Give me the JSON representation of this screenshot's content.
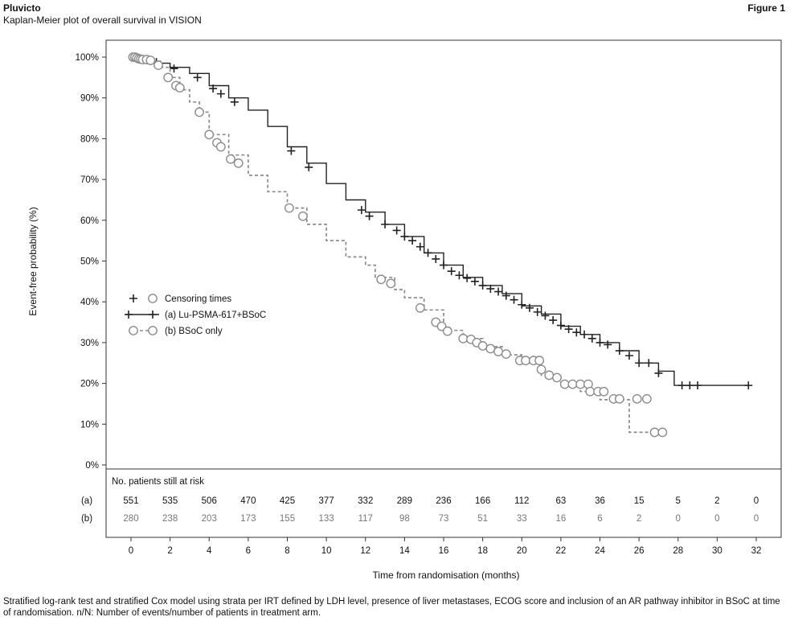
{
  "header": {
    "brand": "Pluvicto",
    "subtitle": "Kaplan-Meier plot of overall survival in VISION",
    "figure": "Figure 1"
  },
  "footnote": "Stratified log-rank test and stratified Cox model using strata per IRT defined by LDH level, presence of liver metastases, ECOG score and inclusion of an AR pathway inhibitor in BSoC at time of randomisation. n/N: Number of events/number of patients in treatment arm.",
  "chart_data": {
    "type": "line",
    "title": "",
    "xlabel": "Time from randomisation (months)",
    "ylabel": "Event-free probability (%)",
    "xlim": [
      0,
      32
    ],
    "ylim": [
      0,
      100
    ],
    "x_ticks": [
      0,
      2,
      4,
      6,
      8,
      10,
      12,
      14,
      16,
      18,
      20,
      22,
      24,
      26,
      28,
      30,
      32
    ],
    "y_ticks": [
      "0%",
      "10%",
      "20%",
      "30%",
      "40%",
      "50%",
      "60%",
      "70%",
      "80%",
      "90%",
      "100%"
    ],
    "y_tick_values": [
      0,
      10,
      20,
      30,
      40,
      50,
      60,
      70,
      80,
      90,
      100
    ],
    "legend": {
      "position": "middle-left",
      "entries": [
        "Censoring times",
        "(a) Lu-PSMA-617+BSoC",
        "(b) BSoC only"
      ]
    },
    "series": [
      {
        "name": "(a) Lu-PSMA-617+BSoC",
        "color": "#222222",
        "style": "solid",
        "censor_mark": "plus",
        "points": [
          [
            0,
            100
          ],
          [
            0.5,
            99.5
          ],
          [
            1,
            99
          ],
          [
            1.5,
            98.5
          ],
          [
            2,
            97.5
          ],
          [
            3,
            96
          ],
          [
            4,
            93
          ],
          [
            5,
            90
          ],
          [
            6,
            87
          ],
          [
            7,
            83
          ],
          [
            8,
            78
          ],
          [
            9,
            74
          ],
          [
            10,
            69
          ],
          [
            11,
            65
          ],
          [
            12,
            62
          ],
          [
            13,
            59
          ],
          [
            14,
            56
          ],
          [
            15,
            52
          ],
          [
            16,
            49
          ],
          [
            17,
            46
          ],
          [
            18,
            44
          ],
          [
            19,
            42
          ],
          [
            20,
            39
          ],
          [
            21,
            37
          ],
          [
            22,
            34
          ],
          [
            23,
            32
          ],
          [
            24,
            30
          ],
          [
            25,
            28
          ],
          [
            26,
            25
          ],
          [
            27,
            23
          ],
          [
            27.8,
            19.5
          ],
          [
            31.6,
            19.5
          ]
        ],
        "censored": [
          [
            0.3,
            99.8
          ],
          [
            0.6,
            99.5
          ],
          [
            1.3,
            98.8
          ],
          [
            2.2,
            97.2
          ],
          [
            3.4,
            95
          ],
          [
            4.2,
            92.3
          ],
          [
            4.6,
            91
          ],
          [
            5.3,
            89
          ],
          [
            8.2,
            77
          ],
          [
            9.1,
            73
          ],
          [
            11.8,
            62.5
          ],
          [
            12.2,
            61
          ],
          [
            13,
            59
          ],
          [
            13.6,
            57.5
          ],
          [
            14,
            56
          ],
          [
            14.4,
            55
          ],
          [
            14.8,
            53.5
          ],
          [
            15.2,
            52
          ],
          [
            15.6,
            50.5
          ],
          [
            16,
            49
          ],
          [
            16.4,
            47.5
          ],
          [
            16.8,
            46.5
          ],
          [
            17.2,
            45.8
          ],
          [
            17.6,
            45
          ],
          [
            18,
            44
          ],
          [
            18.4,
            43.2
          ],
          [
            18.8,
            42.5
          ],
          [
            19.2,
            41.5
          ],
          [
            19.6,
            40.5
          ],
          [
            20,
            39.3
          ],
          [
            20.4,
            38.5
          ],
          [
            20.8,
            37.5
          ],
          [
            21.2,
            36.6
          ],
          [
            21.6,
            35.5
          ],
          [
            22,
            34.2
          ],
          [
            22.4,
            33.3
          ],
          [
            22.8,
            32.5
          ],
          [
            23.2,
            32
          ],
          [
            23.6,
            31
          ],
          [
            24,
            30
          ],
          [
            24.4,
            29.5
          ],
          [
            25,
            28
          ],
          [
            25.5,
            26.8
          ],
          [
            26,
            25
          ],
          [
            26.5,
            25
          ],
          [
            27,
            22.5
          ],
          [
            28.2,
            19.5
          ],
          [
            28.6,
            19.5
          ],
          [
            29,
            19.5
          ],
          [
            31.6,
            19.5
          ]
        ]
      },
      {
        "name": "(b) BSoC only",
        "color": "#8c8c8c",
        "style": "dashed",
        "censor_mark": "circle",
        "points": [
          [
            0,
            100
          ],
          [
            1,
            99
          ],
          [
            1.5,
            97.5
          ],
          [
            2,
            95
          ],
          [
            2.5,
            92
          ],
          [
            3,
            89
          ],
          [
            3.5,
            86.5
          ],
          [
            4,
            81
          ],
          [
            5,
            76
          ],
          [
            6,
            71
          ],
          [
            7,
            67
          ],
          [
            8,
            63
          ],
          [
            9,
            59
          ],
          [
            10,
            55
          ],
          [
            11,
            51
          ],
          [
            12,
            49
          ],
          [
            12.5,
            46
          ],
          [
            13.5,
            43
          ],
          [
            14,
            41
          ],
          [
            15,
            38
          ],
          [
            16,
            33
          ],
          [
            17,
            31
          ],
          [
            18,
            29
          ],
          [
            19,
            27
          ],
          [
            20,
            25
          ],
          [
            21,
            22
          ],
          [
            22,
            20
          ],
          [
            23,
            18
          ],
          [
            24,
            16
          ],
          [
            25.2,
            16
          ],
          [
            25.5,
            8
          ],
          [
            27.2,
            8
          ]
        ],
        "censored": [
          [
            0.1,
            100
          ],
          [
            0.2,
            100
          ],
          [
            0.3,
            99.8
          ],
          [
            0.4,
            99.6
          ],
          [
            0.5,
            99.5
          ],
          [
            0.6,
            99.4
          ],
          [
            0.8,
            99.4
          ],
          [
            1.0,
            99.2
          ],
          [
            1.4,
            98
          ],
          [
            1.9,
            95
          ],
          [
            2.3,
            93
          ],
          [
            2.5,
            92.5
          ],
          [
            3.5,
            86.5
          ],
          [
            4,
            81
          ],
          [
            4.4,
            79
          ],
          [
            4.6,
            78
          ],
          [
            5.1,
            75
          ],
          [
            5.5,
            74
          ],
          [
            8.1,
            63
          ],
          [
            8.8,
            61
          ],
          [
            12.8,
            45.5
          ],
          [
            13.3,
            44.5
          ],
          [
            14.8,
            38.5
          ],
          [
            15.6,
            35
          ],
          [
            15.9,
            34
          ],
          [
            16.2,
            32.8
          ],
          [
            17,
            31
          ],
          [
            17.4,
            30.8
          ],
          [
            17.7,
            30
          ],
          [
            18,
            29.2
          ],
          [
            18.4,
            28.5
          ],
          [
            18.8,
            27.8
          ],
          [
            19.2,
            27.2
          ],
          [
            19.9,
            25.6
          ],
          [
            20.2,
            25.6
          ],
          [
            20.6,
            25.6
          ],
          [
            20.9,
            25.6
          ],
          [
            21,
            23.4
          ],
          [
            21.4,
            22
          ],
          [
            21.8,
            21.4
          ],
          [
            22.2,
            19.8
          ],
          [
            22.6,
            19.8
          ],
          [
            23,
            19.8
          ],
          [
            23.4,
            19.8
          ],
          [
            23.5,
            18
          ],
          [
            23.9,
            18
          ],
          [
            24.2,
            18
          ],
          [
            24.7,
            16.2
          ],
          [
            25,
            16.2
          ],
          [
            25.9,
            16.2
          ],
          [
            26.4,
            16.2
          ],
          [
            26.8,
            8
          ],
          [
            27.2,
            8
          ]
        ]
      }
    ],
    "risk_table": {
      "title": "No. patients still at risk",
      "times": [
        0,
        2,
        4,
        6,
        8,
        10,
        12,
        14,
        16,
        18,
        20,
        22,
        24,
        26,
        28,
        30,
        32
      ],
      "rows": [
        {
          "label": "(a)",
          "color": "#111111",
          "values": [
            551,
            535,
            506,
            470,
            425,
            377,
            332,
            289,
            236,
            166,
            112,
            63,
            36,
            15,
            5,
            2,
            0
          ]
        },
        {
          "label": "(b)",
          "color": "#777777",
          "values": [
            280,
            238,
            203,
            173,
            155,
            133,
            117,
            98,
            73,
            51,
            33,
            16,
            6,
            2,
            0,
            0,
            0
          ]
        }
      ]
    }
  }
}
